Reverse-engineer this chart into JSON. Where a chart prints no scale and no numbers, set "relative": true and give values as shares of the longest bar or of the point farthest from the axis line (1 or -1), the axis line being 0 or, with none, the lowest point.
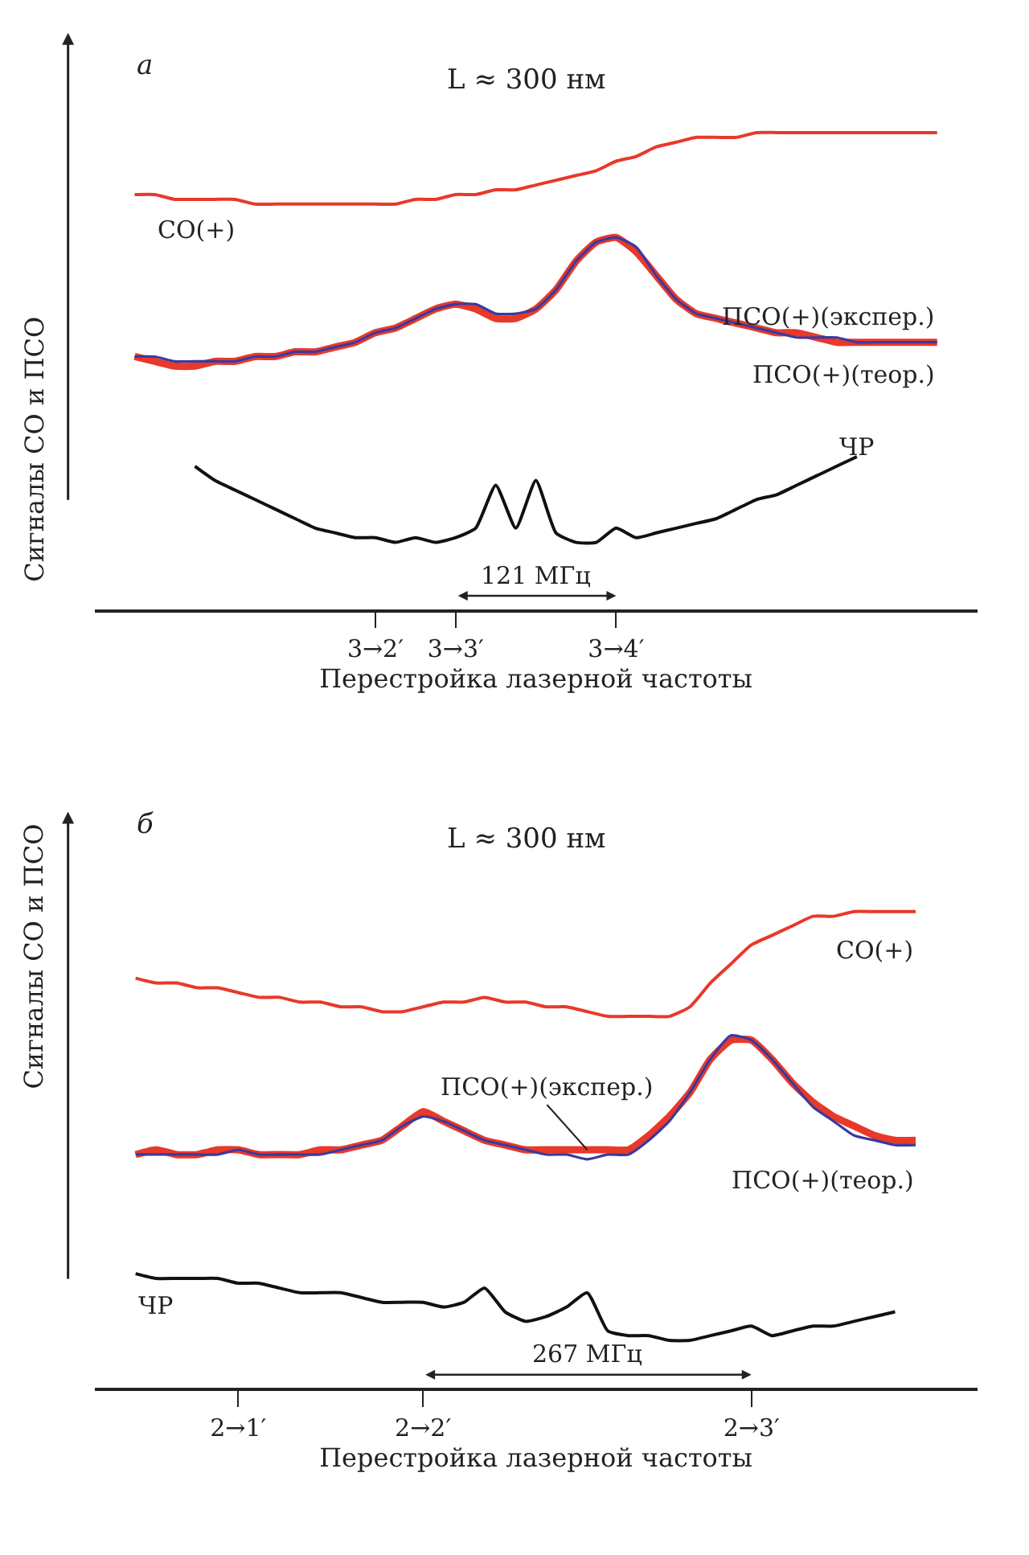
{
  "chart_data": [
    {
      "type": "line",
      "relative": true,
      "title": "L ≈ 300 нм",
      "xlabel": "Перестройка лазерной частоты",
      "ylabel": "Сигналы СО и ПСО",
      "legend": false,
      "tick_labels": "x",
      "categories": [
        null,
        null,
        null,
        null,
        null,
        null,
        null,
        null,
        null,
        null,
        null,
        null,
        "3→2′",
        null,
        null,
        null,
        "3→3′",
        null,
        null,
        null,
        null,
        null,
        null,
        null,
        "3→4′",
        null,
        null,
        null,
        null,
        null,
        null,
        null,
        null,
        null,
        null,
        null,
        null,
        null,
        null,
        null,
        null
      ],
      "annotations": [
        "а",
        "121 МГц"
      ],
      "series": [
        {
          "name": "СО(+)",
          "color": "#e8392a",
          "values": [
            0.87,
            0.87,
            0.86,
            0.86,
            0.86,
            0.86,
            0.85,
            0.85,
            0.85,
            0.85,
            0.85,
            0.85,
            0.85,
            0.85,
            0.86,
            0.86,
            0.87,
            0.87,
            0.88,
            0.88,
            0.89,
            0.9,
            0.91,
            0.92,
            0.94,
            0.95,
            0.97,
            0.98,
            0.99,
            0.99,
            0.99,
            1.0,
            1.0,
            1.0,
            1.0,
            1.0,
            1.0,
            1.0,
            1.0,
            1.0,
            1.0
          ]
        },
        {
          "name": "ПСО(+)(экспер.)",
          "color": "#e8392a",
          "values": [
            0.53,
            0.52,
            0.51,
            0.51,
            0.52,
            0.52,
            0.53,
            0.53,
            0.54,
            0.54,
            0.55,
            0.56,
            0.58,
            0.59,
            0.61,
            0.63,
            0.64,
            0.63,
            0.61,
            0.61,
            0.63,
            0.67,
            0.73,
            0.77,
            0.78,
            0.75,
            0.7,
            0.65,
            0.62,
            0.61,
            0.6,
            0.59,
            0.58,
            0.58,
            0.57,
            0.56,
            0.56,
            0.56,
            0.56,
            0.56,
            0.56
          ]
        },
        {
          "name": "ПСО(+)(теор.)",
          "color": "#3a3aa0",
          "values": [
            0.53,
            0.53,
            0.52,
            0.52,
            0.52,
            0.52,
            0.53,
            0.53,
            0.54,
            0.54,
            0.55,
            0.56,
            0.58,
            0.59,
            0.61,
            0.63,
            0.64,
            0.64,
            0.62,
            0.62,
            0.63,
            0.67,
            0.73,
            0.77,
            0.78,
            0.76,
            0.7,
            0.65,
            0.62,
            0.61,
            0.6,
            0.59,
            0.58,
            0.57,
            0.57,
            0.57,
            0.56,
            0.56,
            0.56,
            0.56,
            0.56
          ]
        },
        {
          "name": "ЧР",
          "color": "#111111",
          "values": [
            null,
            null,
            null,
            0.3,
            0.27,
            0.25,
            0.23,
            0.21,
            0.19,
            0.17,
            0.16,
            0.15,
            0.15,
            0.14,
            0.15,
            0.14,
            0.15,
            0.17,
            0.26,
            0.17,
            0.27,
            0.16,
            0.14,
            0.14,
            0.17,
            0.15,
            0.16,
            0.17,
            0.18,
            0.19,
            0.21,
            0.23,
            0.24,
            0.26,
            0.28,
            0.3,
            0.32,
            null,
            null,
            null,
            null
          ]
        }
      ]
    },
    {
      "type": "line",
      "relative": true,
      "title": "L ≈ 300 нм",
      "xlabel": "Перестройка лазерной частоты",
      "ylabel": "Сигналы СО и ПСО",
      "legend": false,
      "tick_labels": "x",
      "categories": [
        null,
        null,
        null,
        null,
        null,
        "2→1′",
        null,
        null,
        null,
        null,
        null,
        null,
        null,
        null,
        "2→2′",
        null,
        null,
        null,
        null,
        null,
        null,
        null,
        null,
        null,
        null,
        null,
        null,
        null,
        null,
        null,
        "2→3′",
        null,
        null,
        null,
        null,
        null,
        null,
        null,
        null,
        null
      ],
      "annotations": [
        "б",
        "267 МГц"
      ],
      "series": [
        {
          "name": "СО(+)",
          "color": "#e8392a",
          "values": [
            0.86,
            0.85,
            0.85,
            0.84,
            0.84,
            0.83,
            0.82,
            0.82,
            0.81,
            0.81,
            0.8,
            0.8,
            0.79,
            0.79,
            0.8,
            0.81,
            0.81,
            0.82,
            0.81,
            0.81,
            0.8,
            0.8,
            0.79,
            0.78,
            0.78,
            0.78,
            0.78,
            0.8,
            0.85,
            0.89,
            0.93,
            0.95,
            0.97,
            0.99,
            0.99,
            1.0,
            1.0,
            1.0,
            1.0,
            null
          ]
        },
        {
          "name": "ПСО(+)(экспер.)",
          "color": "#e8392a",
          "values": [
            0.49,
            0.5,
            0.49,
            0.49,
            0.5,
            0.5,
            0.49,
            0.49,
            0.49,
            0.5,
            0.5,
            0.51,
            0.52,
            0.55,
            0.58,
            0.56,
            0.54,
            0.52,
            0.51,
            0.5,
            0.5,
            0.5,
            0.5,
            0.5,
            0.5,
            0.53,
            0.57,
            0.62,
            0.69,
            0.73,
            0.73,
            0.69,
            0.64,
            0.6,
            0.57,
            0.55,
            0.53,
            0.52,
            0.52,
            null
          ]
        },
        {
          "name": "ПСО(+)(теор.)",
          "color": "#3a3aa0",
          "values": [
            0.49,
            0.49,
            0.49,
            0.49,
            0.49,
            0.5,
            0.49,
            0.49,
            0.49,
            0.49,
            0.5,
            0.51,
            0.52,
            0.55,
            0.57,
            0.56,
            0.54,
            0.52,
            0.51,
            0.5,
            0.49,
            0.49,
            0.48,
            0.49,
            0.49,
            0.52,
            0.56,
            0.62,
            0.69,
            0.74,
            0.73,
            0.69,
            0.64,
            0.59,
            0.56,
            0.53,
            0.52,
            0.51,
            0.51,
            null
          ]
        },
        {
          "name": "ЧР",
          "color": "#111111",
          "values": [
            0.24,
            0.23,
            0.23,
            0.23,
            0.23,
            0.22,
            0.22,
            0.21,
            0.2,
            0.2,
            0.2,
            0.19,
            0.18,
            0.18,
            0.18,
            0.17,
            0.18,
            0.21,
            0.16,
            0.14,
            0.15,
            0.17,
            0.2,
            0.12,
            0.11,
            0.11,
            0.1,
            0.1,
            0.11,
            0.12,
            0.13,
            0.11,
            0.12,
            0.13,
            0.13,
            0.14,
            0.15,
            0.16,
            null,
            null
          ]
        }
      ]
    }
  ]
}
